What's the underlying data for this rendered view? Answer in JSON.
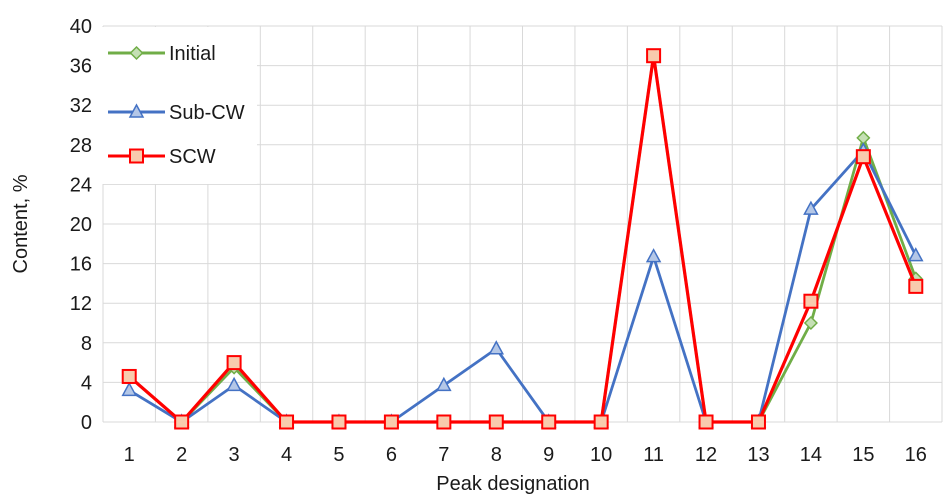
{
  "chart_data": {
    "type": "line",
    "xlabel": "Peak designation",
    "ylabel": "Content, %",
    "x": [
      1,
      2,
      3,
      4,
      5,
      6,
      7,
      8,
      9,
      10,
      11,
      12,
      13,
      14,
      15,
      16
    ],
    "x_tick_labels": [
      "1",
      "2",
      "3",
      "4",
      "5",
      "6",
      "7",
      "8",
      "9",
      "10",
      "11",
      "12",
      "13",
      "14",
      "15",
      "16"
    ],
    "ylim": [
      0,
      40
    ],
    "y_ticks": [
      0,
      4,
      8,
      12,
      16,
      20,
      24,
      28,
      32,
      36,
      40
    ],
    "grid": true,
    "legend_position": "top-left",
    "series": [
      {
        "name": "Initial",
        "color": "#70ad47",
        "marker": "diamond",
        "marker_fill": "#c5e0b4",
        "values": [
          4.6,
          0,
          5.5,
          0,
          0,
          0,
          0,
          0,
          0,
          0,
          37,
          0,
          0,
          10,
          28.7,
          14.5
        ]
      },
      {
        "name": "Sub-CW",
        "color": "#4472c4",
        "marker": "triangle",
        "marker_fill": "#b4c7e7",
        "values": [
          3.2,
          0,
          3.7,
          0,
          0,
          0,
          3.7,
          7.4,
          0,
          0,
          16.7,
          0,
          0,
          21.5,
          27.4,
          16.8
        ]
      },
      {
        "name": "SCW",
        "color": "#ff0000",
        "marker": "square",
        "marker_fill": "#f8cbad",
        "values": [
          4.6,
          0,
          6,
          0,
          0,
          0,
          0,
          0,
          0,
          0,
          37,
          0,
          0,
          12.2,
          26.8,
          13.7
        ]
      }
    ]
  }
}
